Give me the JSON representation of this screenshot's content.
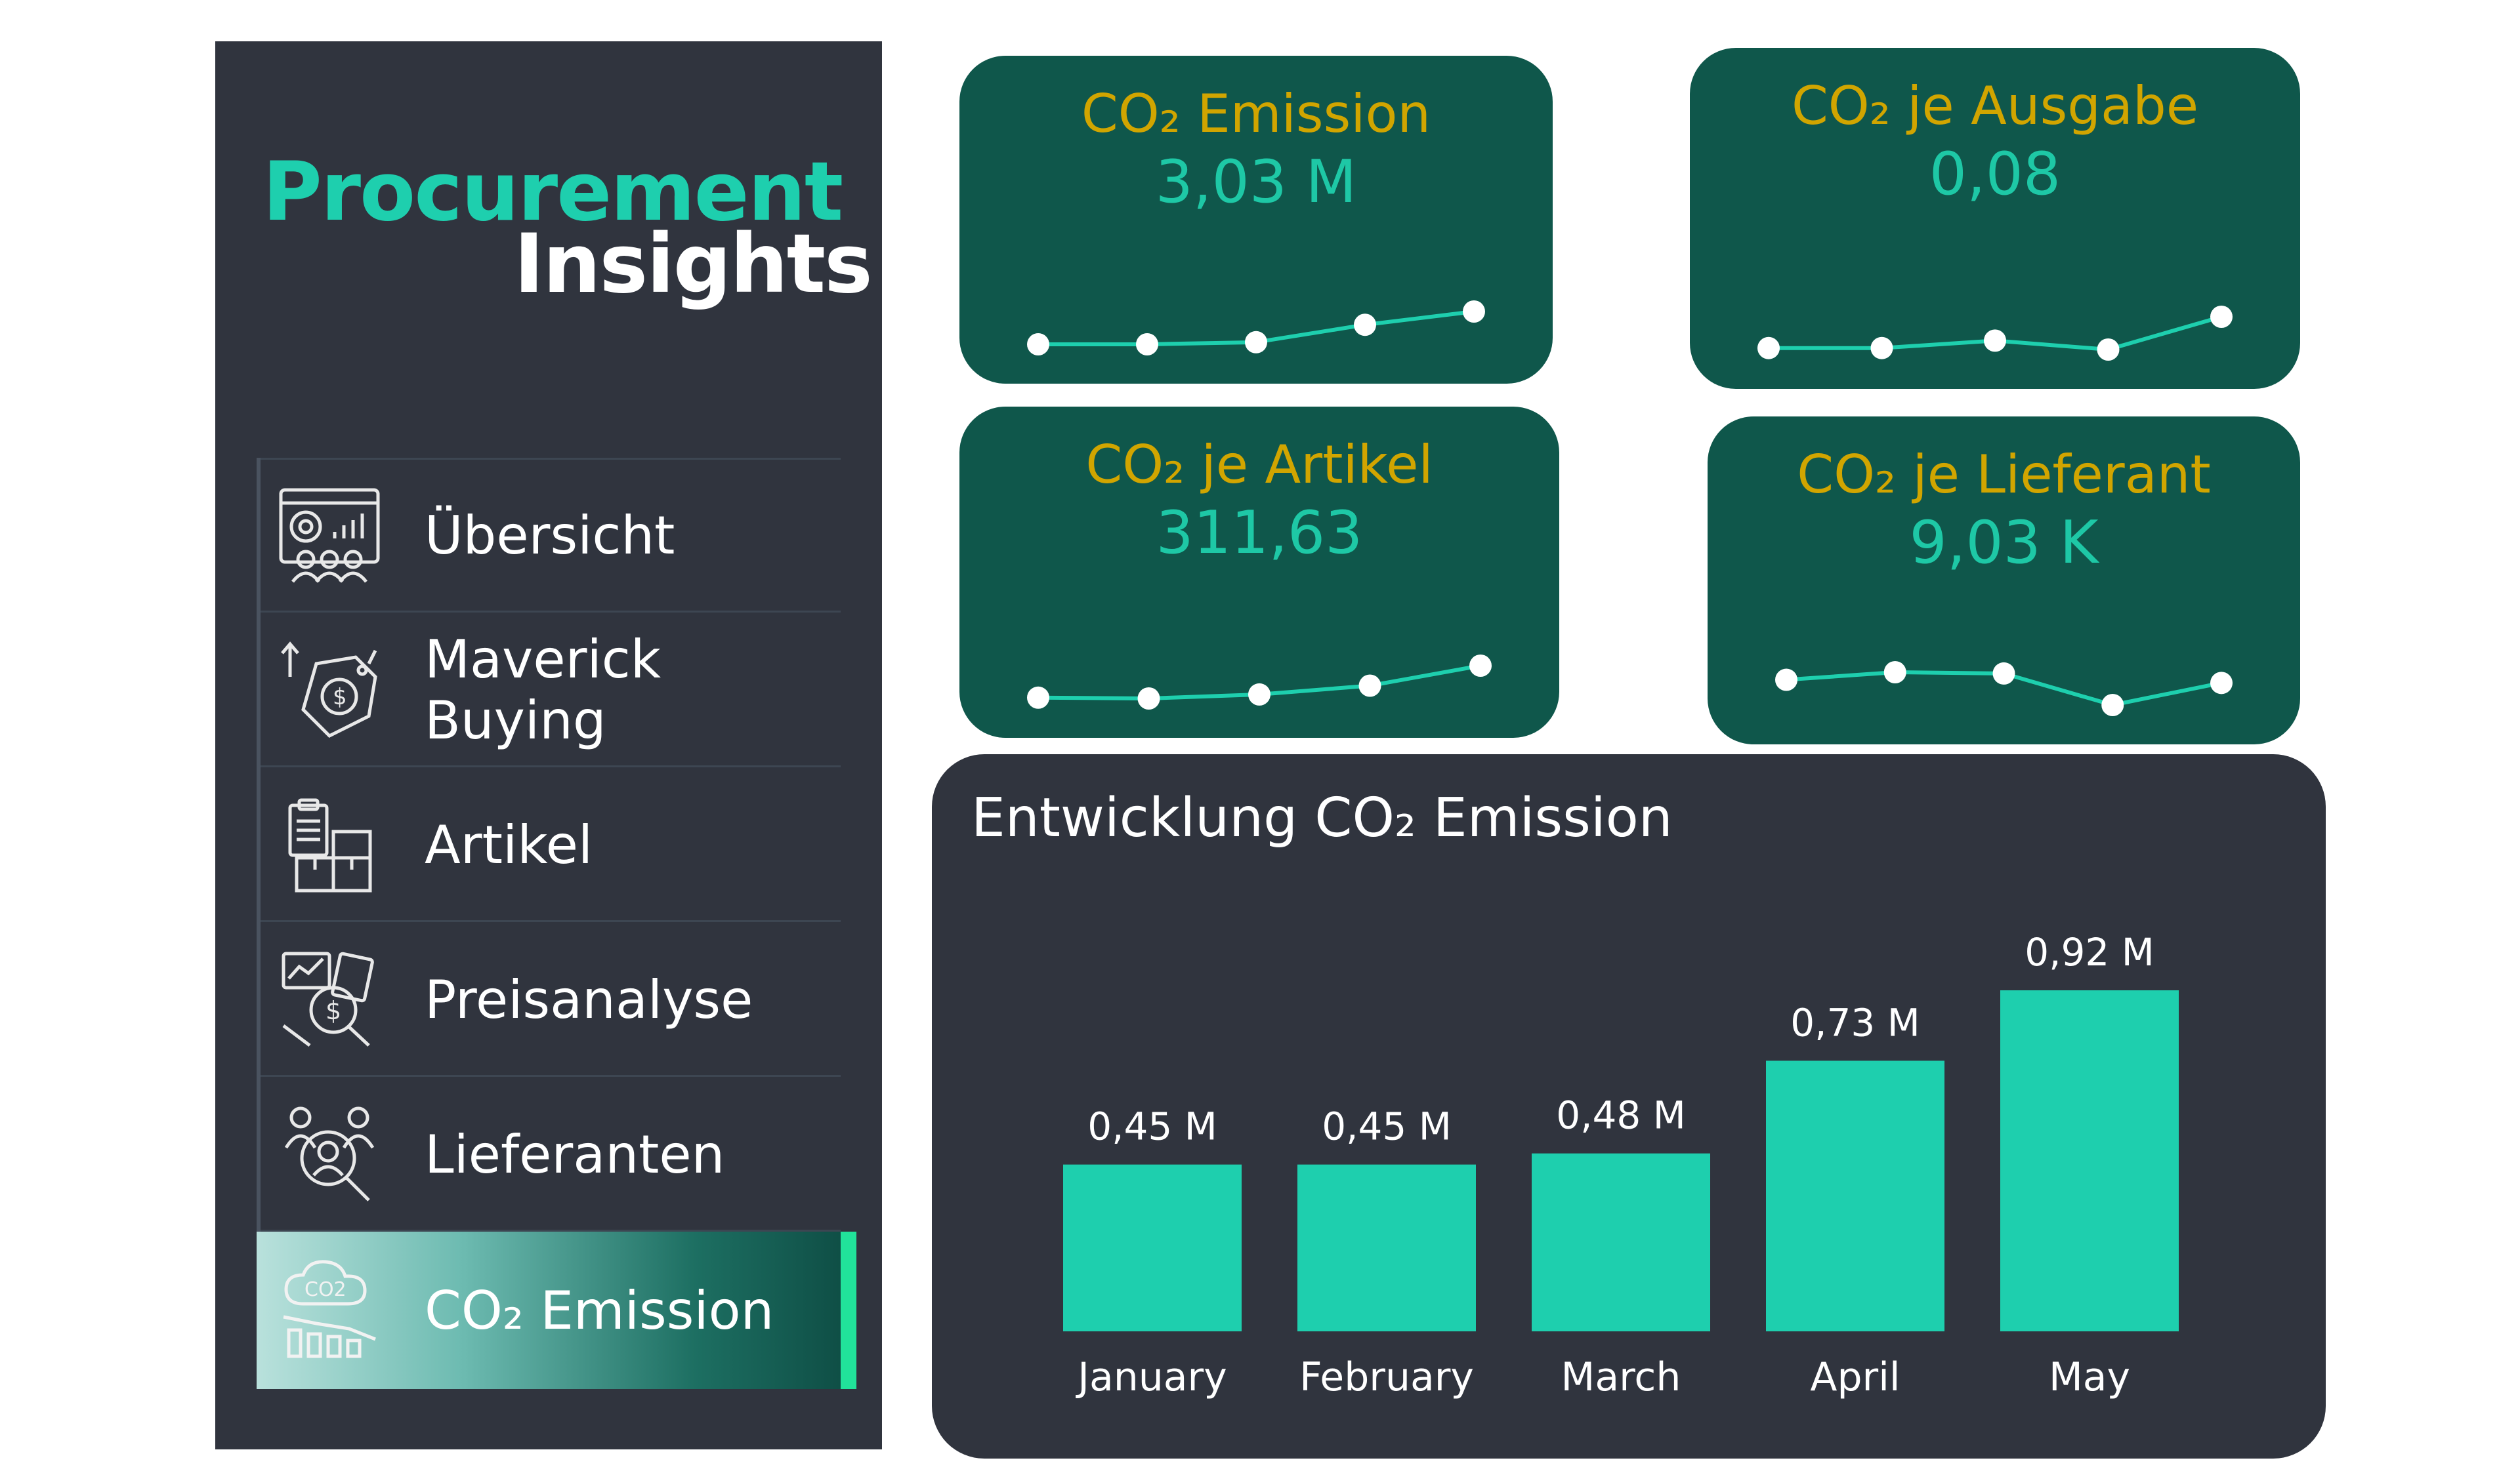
{
  "sidebar": {
    "logo_line1": "Procurement",
    "logo_line2": "Insights",
    "items": [
      {
        "label": "Übersicht",
        "icon": "dashboard-icon"
      },
      {
        "label": "Maverick Buying",
        "icon": "price-tag-icon"
      },
      {
        "label": "Artikel",
        "icon": "clipboard-boxes-icon"
      },
      {
        "label": "Preisanalyse",
        "icon": "price-analysis-icon"
      },
      {
        "label": "Lieferanten",
        "icon": "supplier-search-icon"
      },
      {
        "label": "CO₂ Emission",
        "icon": "co2-cloud-icon",
        "active": true
      }
    ]
  },
  "kpis": [
    {
      "title": "CO₂ Emission",
      "value": "3,03 M",
      "trend": [
        0.45,
        0.45,
        0.48,
        0.73,
        0.92
      ]
    },
    {
      "title": "CO₂ je Ausgabe",
      "value": "0,08",
      "trend": [
        0.2,
        0.2,
        0.3,
        0.18,
        0.62
      ]
    },
    {
      "title": "CO₂ je Artikel",
      "value": "311,63",
      "trend": [
        0.1,
        0.08,
        0.18,
        0.4,
        0.9
      ]
    },
    {
      "title": "CO₂ je Lieferant",
      "value": "9,03 K",
      "trend": [
        0.6,
        0.72,
        0.7,
        0.2,
        0.55
      ]
    }
  ],
  "chart_data": {
    "type": "bar",
    "title": "Entwicklung CO₂ Emission",
    "categories": [
      "January",
      "February",
      "March",
      "April",
      "May"
    ],
    "values": [
      0.45,
      0.45,
      0.48,
      0.73,
      0.92
    ],
    "data_labels": [
      "0,45 M",
      "0,45 M",
      "0,48 M",
      "0,73 M",
      "0,92 M"
    ],
    "ylim": [
      0,
      0.92
    ],
    "grid": false,
    "bar_color": "#1ecfae"
  },
  "colors": {
    "accent": "#1ecfae",
    "card_bg": "#0f574b",
    "card_title": "#d1a500",
    "panel_bg": "#30343e",
    "active_bar": "#21e39a"
  }
}
